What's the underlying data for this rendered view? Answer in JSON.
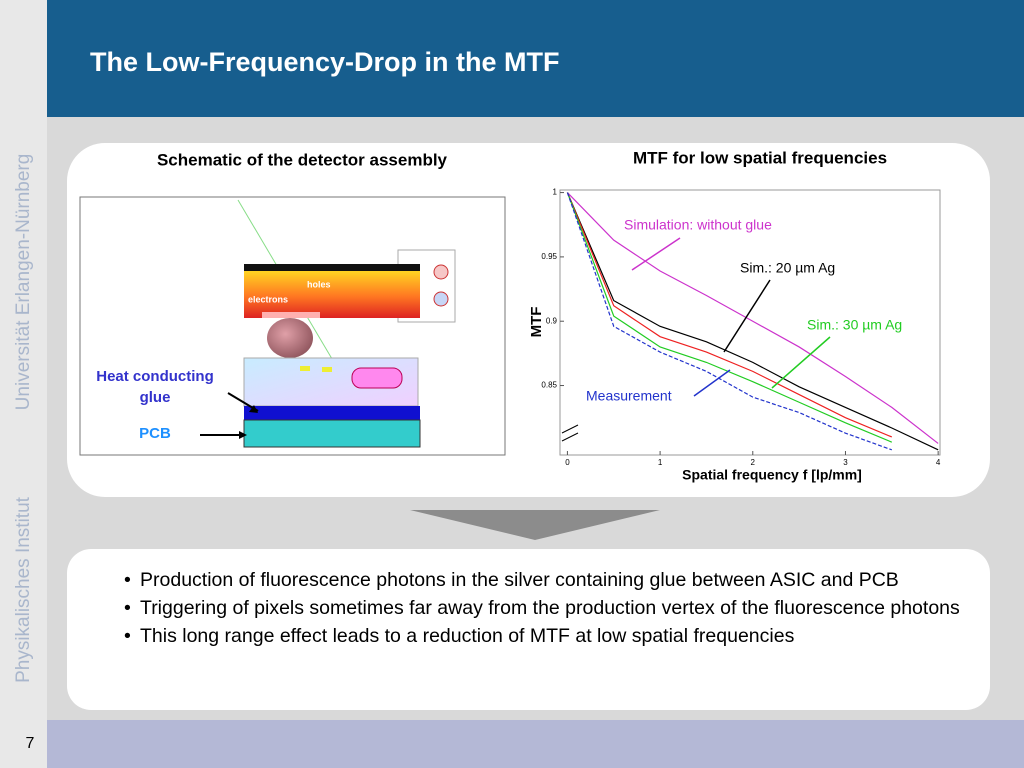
{
  "header": {
    "title": "The Low-Frequency-Drop in the MTF"
  },
  "sidebar": {
    "university": "Universität Erlangen-Nürnberg",
    "institute": "Physikalisches Institut"
  },
  "footer": {
    "page": "7"
  },
  "schematic": {
    "title": "Schematic of the detector assembly",
    "holes": "holes",
    "electrons": "electrons",
    "glue": "Heat conducting glue",
    "pcb": "PCB"
  },
  "chart_data": {
    "type": "line",
    "title": "MTF for low spatial frequencies",
    "x_label": "Spatial frequency f [lp/mm]",
    "y_label": "MTF",
    "x": [
      0,
      0.5,
      1,
      1.5,
      2,
      2.5,
      3,
      3.5,
      4
    ],
    "xlim": [
      -0.08,
      4.02
    ],
    "ylim": [
      0.796,
      1.002
    ],
    "xticks": [
      0,
      1,
      2,
      3,
      4
    ],
    "yticks": [
      0.85,
      0.9,
      0.95,
      1
    ],
    "series": [
      {
        "name": "Simulation: without glue",
        "color": "#cc33cc",
        "values": [
          1,
          0.963,
          0.939,
          0.92,
          0.9,
          0.88,
          0.857,
          0.833,
          0.805
        ]
      },
      {
        "name": "Sim.: 20 µm Ag",
        "color": "#000000",
        "values": [
          1,
          0.916,
          0.896,
          0.884,
          0.868,
          0.849,
          0.833,
          0.817,
          0.8
        ]
      },
      {
        "color": "#ee2222",
        "values": [
          1,
          0.912,
          0.888,
          0.876,
          0.861,
          0.843,
          0.825,
          0.81,
          null
        ]
      },
      {
        "name": "Sim.: 30 µm Ag",
        "color": "#22cc22",
        "values": [
          1,
          0.904,
          0.88,
          0.868,
          0.853,
          0.837,
          0.821,
          0.806,
          null
        ]
      },
      {
        "name": "Measurement",
        "color": "#2233cc",
        "dashed": true,
        "values": [
          1,
          0.896,
          0.876,
          0.861,
          0.841,
          0.829,
          0.813,
          0.8,
          null
        ]
      }
    ]
  },
  "bullets": [
    "Production of fluorescence photons in the silver containing glue between ASIC and PCB",
    "Triggering of pixels sometimes far away from the production vertex of the fluorescence photons",
    "This long range effect leads to a reduction of MTF at low spatial frequencies"
  ]
}
